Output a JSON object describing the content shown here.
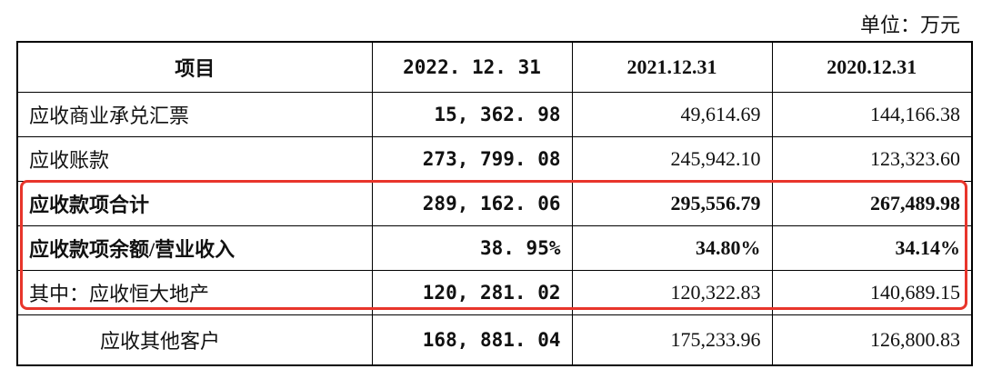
{
  "unit": "单位：万元",
  "table": {
    "header": [
      "项目",
      "2022. 12. 31",
      "2021.12.31",
      "2020.12.31"
    ],
    "rows": [
      [
        "应收商业承兑汇票",
        "15, 362. 98",
        "49,614.69",
        "144,166.38"
      ],
      [
        "应收账款",
        "273, 799. 08",
        "245,942.10",
        "123,323.60"
      ],
      [
        "应收款项合计",
        "289, 162. 06",
        "295,556.79",
        "267,489.98"
      ],
      [
        "应收款项余额/营业收入",
        "38. 95%",
        "34.80%",
        "34.14%"
      ],
      [
        "其中：应收恒大地产",
        "120, 281. 02",
        "120,322.83",
        "140,689.15"
      ],
      [
        "应收其他客户",
        "168, 881. 04",
        "175,233.96",
        "126,800.83"
      ]
    ]
  }
}
